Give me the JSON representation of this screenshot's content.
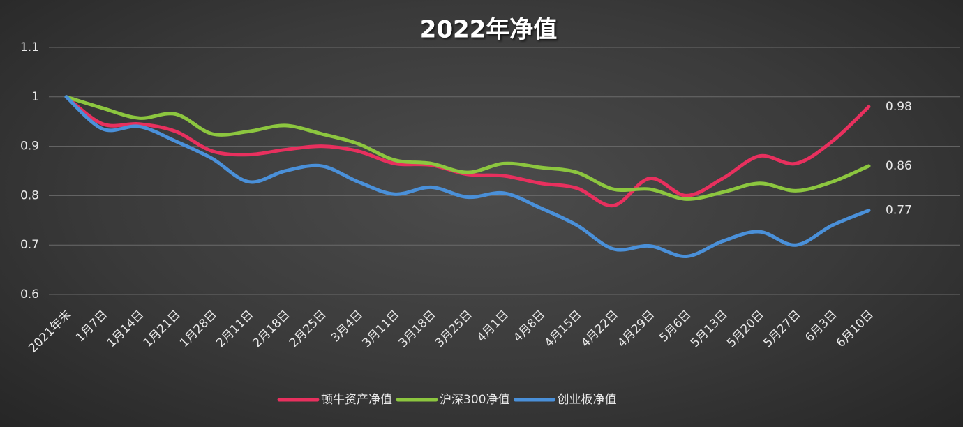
{
  "chart_data": {
    "type": "line",
    "title": "2022年净值",
    "categories": [
      "2021年末",
      "1月7日",
      "1月14日",
      "1月21日",
      "1月28日",
      "2月11日",
      "2月18日",
      "2月25日",
      "3月4日",
      "3月11日",
      "3月18日",
      "3月25日",
      "4月1日",
      "4月8日",
      "4月15日",
      "4月22日",
      "4月29日",
      "5月6日",
      "5月13日",
      "5月20日",
      "5月27日",
      "6月3日",
      "6月10日"
    ],
    "series": [
      {
        "name": "顿牛资产净值",
        "color": "#e8305e",
        "values": [
          1.0,
          0.945,
          0.945,
          0.93,
          0.89,
          0.883,
          0.893,
          0.9,
          0.89,
          0.865,
          0.862,
          0.843,
          0.84,
          0.825,
          0.815,
          0.78,
          0.835,
          0.8,
          0.835,
          0.88,
          0.865,
          0.91,
          0.98
        ]
      },
      {
        "name": "沪深300净值",
        "color": "#8cc63f",
        "values": [
          1.0,
          0.977,
          0.957,
          0.965,
          0.925,
          0.93,
          0.942,
          0.925,
          0.905,
          0.872,
          0.865,
          0.847,
          0.865,
          0.857,
          0.847,
          0.813,
          0.813,
          0.793,
          0.807,
          0.825,
          0.81,
          0.828,
          0.86
        ]
      },
      {
        "name": "创业板净值",
        "color": "#4a90d9",
        "values": [
          1.0,
          0.935,
          0.94,
          0.91,
          0.875,
          0.828,
          0.85,
          0.86,
          0.828,
          0.803,
          0.817,
          0.797,
          0.805,
          0.775,
          0.74,
          0.692,
          0.698,
          0.677,
          0.708,
          0.727,
          0.7,
          0.74,
          0.77
        ]
      }
    ],
    "ylim": [
      0.6,
      1.1
    ],
    "yticks": [
      0.6,
      0.7,
      0.8,
      0.9,
      1,
      1.1
    ],
    "grid": true,
    "legend": "bottom"
  }
}
